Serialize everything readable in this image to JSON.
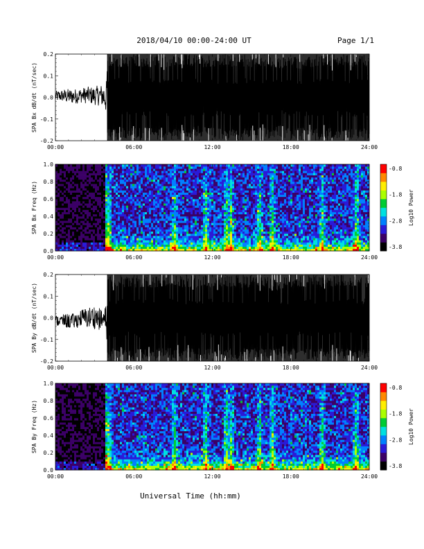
{
  "header": {
    "title": "2018/04/10  00:00-24:00 UT",
    "page": "Page 1/1"
  },
  "footer": {
    "xlabel": "Universal Time (hh:mm)"
  },
  "colors": {
    "colormap": [
      "#000000",
      "#3b0066",
      "#2a1ad8",
      "#0080ff",
      "#00e0e0",
      "#00cc33",
      "#aaff00",
      "#ffee00",
      "#ff8800",
      "#ff0000"
    ],
    "trace": "#000000"
  },
  "chart_data": [
    {
      "type": "line",
      "ylabel": "SPA Bx dB/dt (nT/sec)",
      "ylim": [
        -0.2,
        0.2
      ],
      "yticks": [
        "0.2",
        "0.1",
        "0.0",
        "-0.1",
        "-0.2"
      ],
      "xlim": [
        0,
        24
      ],
      "xticks": [
        "00:00",
        "06:00",
        "12:00",
        "18:00",
        "24:00"
      ],
      "envelope": {
        "x": [
          0,
          0.5,
          1,
          1.5,
          2,
          2.5,
          3,
          3.5,
          3.9,
          4.0,
          5,
          6,
          7,
          8,
          9,
          10,
          11,
          12,
          13,
          14,
          15,
          16,
          17,
          18,
          19,
          20,
          21,
          22,
          23,
          24
        ],
        "max": [
          0.03,
          0.035,
          0.04,
          0.04,
          0.045,
          0.05,
          0.05,
          0.06,
          0.08,
          0.2,
          0.2,
          0.2,
          0.2,
          0.2,
          0.2,
          0.2,
          0.2,
          0.2,
          0.2,
          0.2,
          0.2,
          0.2,
          0.18,
          0.2,
          0.18,
          0.2,
          0.2,
          0.2,
          0.2,
          0.2
        ],
        "min": [
          -0.02,
          -0.02,
          -0.03,
          -0.03,
          -0.025,
          -0.03,
          -0.035,
          -0.04,
          -0.08,
          -0.2,
          -0.2,
          -0.2,
          -0.2,
          -0.2,
          -0.2,
          -0.2,
          -0.18,
          -0.2,
          -0.2,
          -0.2,
          -0.2,
          -0.2,
          -0.18,
          -0.2,
          -0.2,
          -0.2,
          -0.2,
          -0.2,
          -0.2,
          -0.2
        ]
      }
    },
    {
      "type": "heatmap",
      "ylabel": "SPA Bx Freq (Hz)",
      "ylim": [
        0.0,
        1.0
      ],
      "yticks": [
        "1.0",
        "0.8",
        "0.6",
        "0.4",
        "0.2",
        "0.0"
      ],
      "xlim": [
        0,
        24
      ],
      "xticks": [
        "00:00",
        "06:00",
        "12:00",
        "18:00",
        "24:00"
      ],
      "colorbar": {
        "label": "Log10 Power",
        "range": [
          -3.8,
          -0.8
        ],
        "ticks": [
          "-0.8",
          "-1.8",
          "-2.8",
          "-3.8"
        ]
      }
    },
    {
      "type": "line",
      "ylabel": "SPA By dB/dt (nT/sec)",
      "ylim": [
        -0.2,
        0.2
      ],
      "yticks": [
        "0.2",
        "0.1",
        "0.0",
        "-0.1",
        "-0.2"
      ],
      "xlim": [
        0,
        24
      ],
      "xticks": [
        "00:00",
        "06:00",
        "12:00",
        "18:00",
        "24:00"
      ],
      "envelope": {
        "x": [
          0,
          0.5,
          1,
          1.5,
          2,
          2.5,
          3,
          3.5,
          3.9,
          4.0,
          5,
          6,
          7,
          8,
          9,
          10,
          11,
          12,
          13,
          14,
          15,
          16,
          17,
          18,
          19,
          20,
          21,
          22,
          23,
          24
        ],
        "max": [
          0.01,
          0.015,
          0.02,
          0.02,
          0.04,
          0.05,
          0.06,
          0.04,
          0.06,
          0.2,
          0.2,
          0.2,
          0.2,
          0.2,
          0.2,
          0.2,
          0.2,
          0.2,
          0.2,
          0.2,
          0.2,
          0.2,
          0.18,
          0.2,
          0.2,
          0.2,
          0.2,
          0.2,
          0.2,
          0.2
        ],
        "min": [
          -0.04,
          -0.04,
          -0.05,
          -0.05,
          -0.04,
          -0.05,
          -0.05,
          -0.06,
          -0.08,
          -0.2,
          -0.2,
          -0.2,
          -0.2,
          -0.2,
          -0.2,
          -0.2,
          -0.2,
          -0.2,
          -0.2,
          -0.2,
          -0.2,
          -0.2,
          -0.2,
          -0.2,
          -0.2,
          -0.2,
          -0.2,
          -0.2,
          -0.2,
          -0.2
        ]
      }
    },
    {
      "type": "heatmap",
      "ylabel": "SPA By Freq (Hz)",
      "ylim": [
        0.0,
        1.0
      ],
      "yticks": [
        "1.0",
        "0.8",
        "0.6",
        "0.4",
        "0.2",
        "0.0"
      ],
      "xlim": [
        0,
        24
      ],
      "xticks": [
        "00:00",
        "06:00",
        "12:00",
        "18:00",
        "24:00"
      ],
      "colorbar": {
        "label": "Log10 Power",
        "range": [
          -3.8,
          -0.8
        ],
        "ticks": [
          "-0.8",
          "-1.8",
          "-2.8",
          "-3.8"
        ]
      }
    }
  ]
}
